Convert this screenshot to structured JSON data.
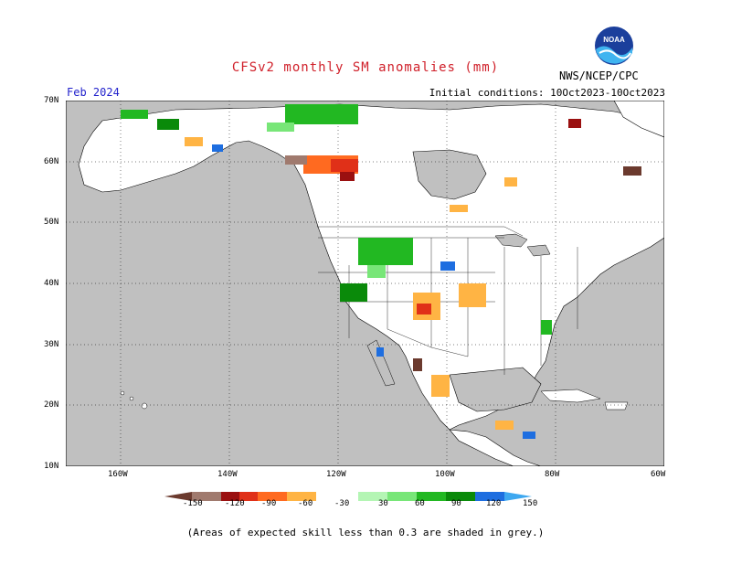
{
  "title": "CFSv2 monthly SM anomalies (mm)",
  "valid_month": "Feb 2024",
  "agency": "NWS/NCEP/CPC",
  "initial_conditions": "Initial conditions: 10Oct2023-10Oct2023",
  "logo_text": "NOAA",
  "footnote": "(Areas of expected skill less than 0.3 are shaded in grey.)",
  "map": {
    "lat_ticks": [
      "70N",
      "60N",
      "50N",
      "40N",
      "30N",
      "20N",
      "10N"
    ],
    "lon_ticks": [
      "160W",
      "140W",
      "120W",
      "100W",
      "80W",
      "60W"
    ],
    "grey_skill_mask_color": "#c0c0c0",
    "land_color": "#ffffff",
    "coast_color": "#000000"
  },
  "legend": {
    "labels": [
      "-150",
      "-120",
      "-90",
      "-60",
      "-30",
      "30",
      "60",
      "90",
      "120",
      "150"
    ],
    "colors": [
      "#6b3a2e",
      "#a07a6e",
      "#9a1010",
      "#e03018",
      "#ff6a20",
      "#ffb444",
      "#ffffff",
      "#b4f5b4",
      "#78e678",
      "#22b822",
      "#0a8a0a",
      "#1e6ee0",
      "#3ea8f0"
    ]
  }
}
